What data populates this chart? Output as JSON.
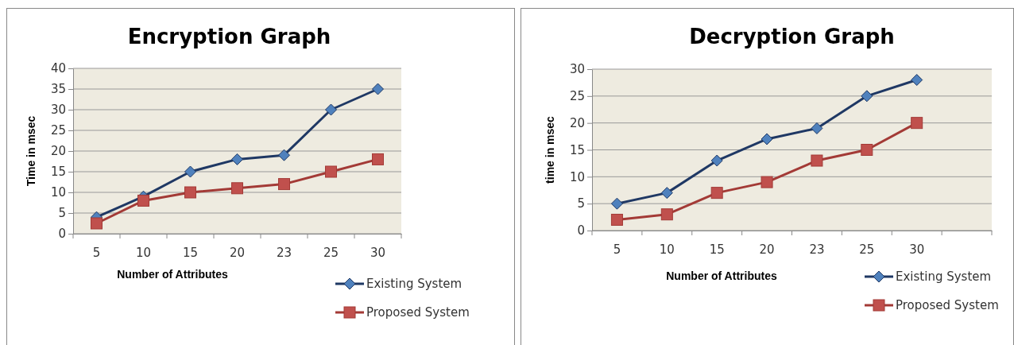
{
  "chart_data": [
    {
      "type": "line",
      "title": "Encryption Graph",
      "xlabel": "Number of Attributes",
      "ylabel": "Time in msec",
      "categories": [
        "5",
        "10",
        "15",
        "20",
        "23",
        "25",
        "30"
      ],
      "ylim": [
        0,
        40
      ],
      "yticks": [
        0,
        5,
        10,
        15,
        20,
        25,
        30,
        35,
        40
      ],
      "grid": "y",
      "legend": "bottom right",
      "series": [
        {
          "name": "Existing System",
          "color": "#1f3864",
          "marker": "diamond",
          "values": [
            4,
            9,
            15,
            18,
            19,
            30,
            35
          ]
        },
        {
          "name": "Proposed System",
          "color": "#a33a36",
          "marker": "square",
          "values": [
            2.5,
            8,
            10,
            11,
            12,
            15,
            18
          ]
        }
      ]
    },
    {
      "type": "line",
      "title": "Decryption Graph",
      "xlabel": "Number of  Attributes",
      "ylabel": "time in msec",
      "categories": [
        "5",
        "10",
        "15",
        "20",
        "23",
        "25",
        "30",
        null
      ],
      "ylim": [
        0,
        30
      ],
      "yticks": [
        0,
        5,
        10,
        15,
        20,
        25,
        30
      ],
      "grid": "y",
      "legend": "bottom right",
      "series": [
        {
          "name": "Existing System",
          "color": "#1f3864",
          "marker": "diamond",
          "values": [
            5,
            7,
            13,
            17,
            19,
            25,
            28,
            null
          ]
        },
        {
          "name": "Proposed System",
          "color": "#a33a36",
          "marker": "square",
          "values": [
            2,
            3,
            7,
            9,
            13,
            15,
            20,
            null
          ]
        }
      ]
    }
  ]
}
